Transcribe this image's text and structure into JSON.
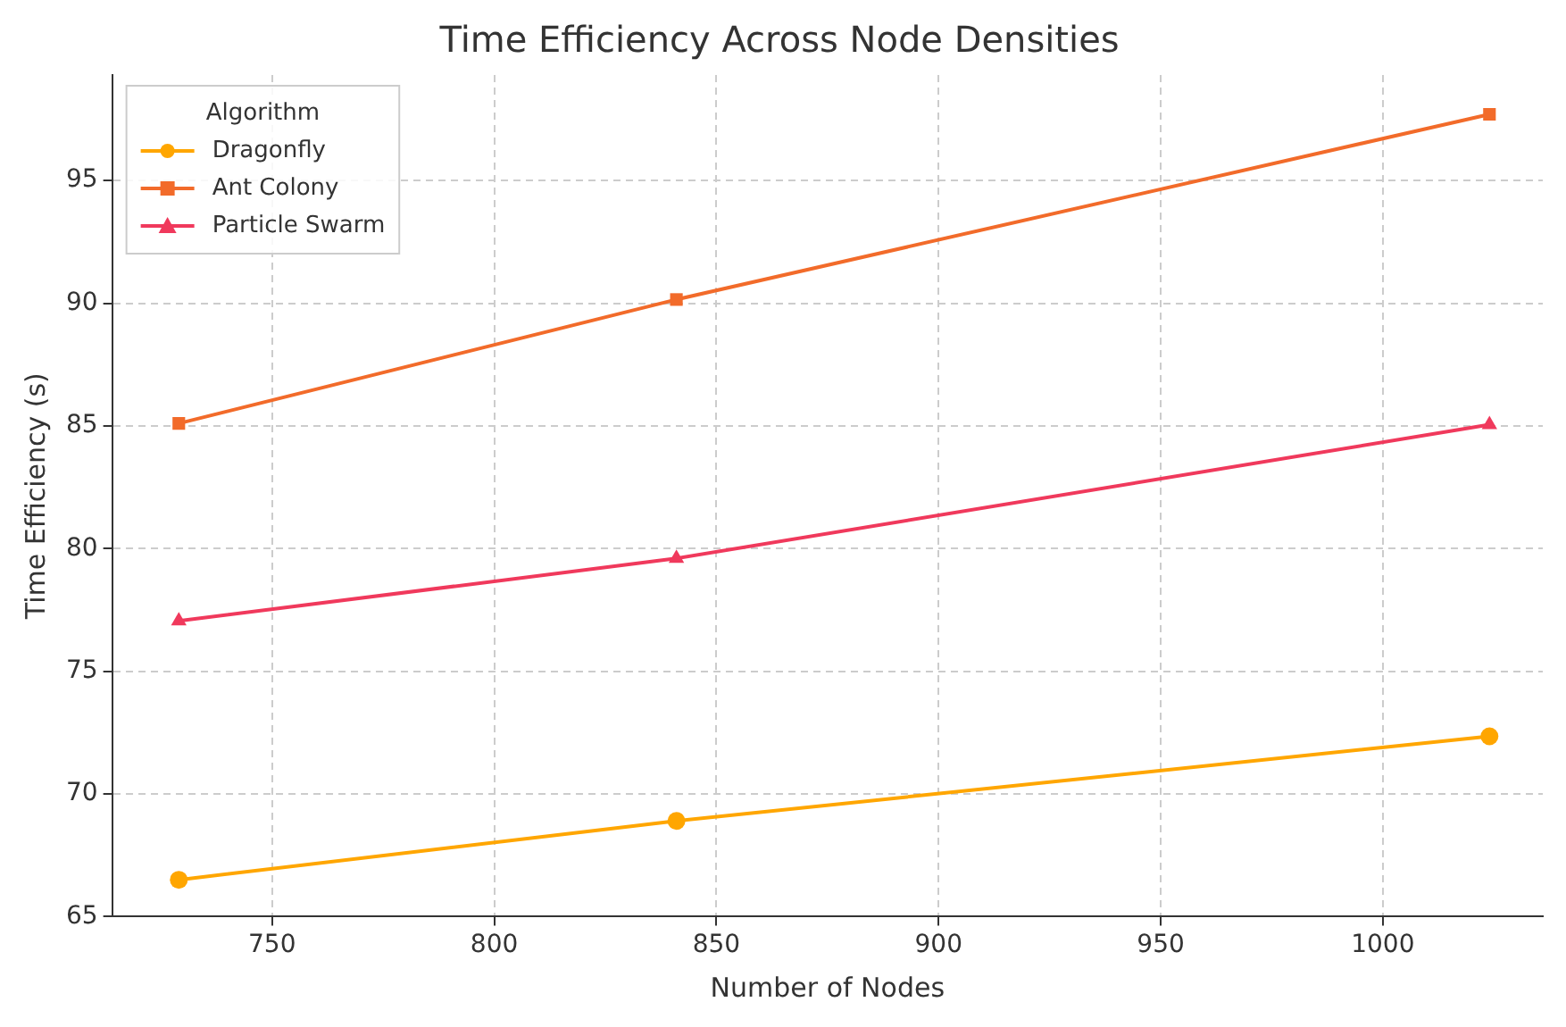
{
  "chart_data": {
    "type": "line",
    "title": "Time Efficiency Across Node Densities",
    "xlabel": "Number of Nodes",
    "ylabel": "Time Efficiency (s)",
    "legend_title": "Algorithm",
    "x": [
      729,
      841,
      1024
    ],
    "series": [
      {
        "name": "Dragonfly",
        "color": "#ffa600",
        "values": [
          66.5,
          68.9,
          72.35
        ],
        "marker": "circle"
      },
      {
        "name": "Ant Colony",
        "color": "#f26b2a",
        "values": [
          85.1,
          90.15,
          97.7
        ],
        "marker": "square"
      },
      {
        "name": "Particle Swarm",
        "color": "#f0395c",
        "values": [
          77.05,
          79.6,
          85.05
        ],
        "marker": "triangle"
      }
    ],
    "xlim": [
      714,
      1036
    ],
    "xticks": [
      750,
      800,
      850,
      900,
      950,
      1000
    ],
    "ylim": [
      65,
      99.3
    ],
    "yticks": [
      65,
      70,
      75,
      80,
      85,
      90,
      95
    ],
    "grid": true,
    "legend": "top left",
    "line_style": "solid"
  }
}
